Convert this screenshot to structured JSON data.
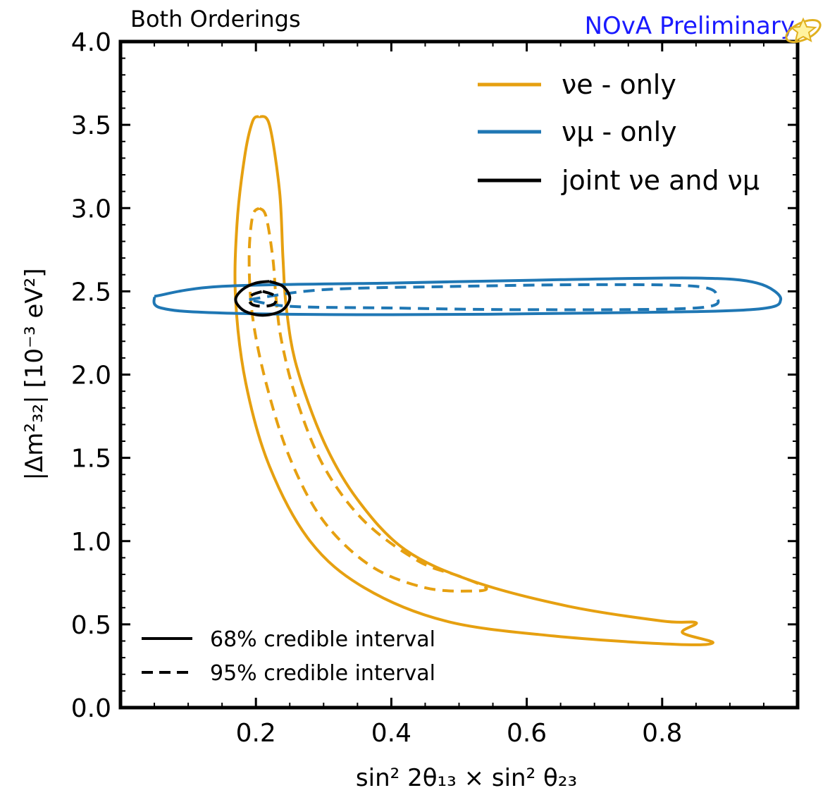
{
  "chart_data": {
    "type": "contour",
    "title": "Both Orderings",
    "watermark": "NOvA Preliminary",
    "xlabel": "sin² 2θ₁₃ × sin² θ₂₃",
    "ylabel": "|Δm²₃₂| [10⁻³ eV²]",
    "xlim": [
      0.0,
      1.0
    ],
    "ylim": [
      0.0,
      4.0
    ],
    "x_ticks": [
      0.2,
      0.4,
      0.6,
      0.8
    ],
    "x_tick_labels": [
      "0.2",
      "0.4",
      "0.6",
      "0.8"
    ],
    "y_ticks": [
      0.0,
      0.5,
      1.0,
      1.5,
      2.0,
      2.5,
      3.0,
      3.5,
      4.0
    ],
    "y_tick_labels": [
      "0.0",
      "0.5",
      "1.0",
      "1.5",
      "2.0",
      "2.5",
      "3.0",
      "3.5",
      "4.0"
    ],
    "legend_series": [
      {
        "label": "νe - only",
        "color": "#e6a010"
      },
      {
        "label": "νμ - only",
        "color": "#1f77b4"
      },
      {
        "label": "joint νe and νμ",
        "color": "#000000"
      }
    ],
    "legend_styles": [
      {
        "label": "68% credible interval",
        "dash": "solid"
      },
      {
        "label": "95% credible interval",
        "dash": "dashed"
      }
    ],
    "series": [
      {
        "id": "nue-68",
        "color": "#e6a010",
        "dash": "solid",
        "points": [
          [
            0.205,
            3.55
          ],
          [
            0.22,
            3.5
          ],
          [
            0.235,
            3.1
          ],
          [
            0.24,
            2.7
          ],
          [
            0.245,
            2.4
          ],
          [
            0.26,
            2.05
          ],
          [
            0.3,
            1.6
          ],
          [
            0.35,
            1.25
          ],
          [
            0.42,
            0.95
          ],
          [
            0.52,
            0.76
          ],
          [
            0.66,
            0.61
          ],
          [
            0.8,
            0.52
          ],
          [
            0.85,
            0.51
          ],
          [
            0.83,
            0.45
          ],
          [
            0.875,
            0.39
          ],
          [
            0.82,
            0.38
          ],
          [
            0.64,
            0.43
          ],
          [
            0.48,
            0.52
          ],
          [
            0.36,
            0.72
          ],
          [
            0.28,
            1.0
          ],
          [
            0.22,
            1.45
          ],
          [
            0.185,
            1.95
          ],
          [
            0.17,
            2.45
          ],
          [
            0.172,
            2.9
          ],
          [
            0.183,
            3.3
          ],
          [
            0.195,
            3.52
          ],
          [
            0.205,
            3.55
          ]
        ]
      },
      {
        "id": "nue-95",
        "color": "#e6a010",
        "dash": "dashed",
        "points": [
          [
            0.205,
            3.0
          ],
          [
            0.215,
            2.95
          ],
          [
            0.225,
            2.7
          ],
          [
            0.23,
            2.45
          ],
          [
            0.238,
            2.2
          ],
          [
            0.26,
            1.85
          ],
          [
            0.3,
            1.45
          ],
          [
            0.36,
            1.12
          ],
          [
            0.44,
            0.88
          ],
          [
            0.5,
            0.79
          ],
          [
            0.54,
            0.72
          ],
          [
            0.52,
            0.7
          ],
          [
            0.45,
            0.72
          ],
          [
            0.37,
            0.85
          ],
          [
            0.3,
            1.12
          ],
          [
            0.25,
            1.5
          ],
          [
            0.215,
            1.95
          ],
          [
            0.195,
            2.35
          ],
          [
            0.19,
            2.7
          ],
          [
            0.195,
            2.95
          ],
          [
            0.205,
            3.0
          ]
        ]
      },
      {
        "id": "numu-68",
        "color": "#1f77b4",
        "dash": "solid",
        "points": [
          [
            0.05,
            2.47
          ],
          [
            0.15,
            2.53
          ],
          [
            0.4,
            2.55
          ],
          [
            0.65,
            2.57
          ],
          [
            0.85,
            2.58
          ],
          [
            0.94,
            2.55
          ],
          [
            0.975,
            2.45
          ],
          [
            0.93,
            2.39
          ],
          [
            0.7,
            2.37
          ],
          [
            0.4,
            2.36
          ],
          [
            0.15,
            2.37
          ],
          [
            0.06,
            2.4
          ],
          [
            0.05,
            2.47
          ]
        ]
      },
      {
        "id": "numu-95",
        "color": "#1f77b4",
        "dash": "dashed",
        "points": [
          [
            0.19,
            2.45
          ],
          [
            0.3,
            2.51
          ],
          [
            0.5,
            2.53
          ],
          [
            0.7,
            2.54
          ],
          [
            0.85,
            2.53
          ],
          [
            0.88,
            2.47
          ],
          [
            0.85,
            2.4
          ],
          [
            0.6,
            2.39
          ],
          [
            0.4,
            2.4
          ],
          [
            0.25,
            2.41
          ],
          [
            0.19,
            2.45
          ]
        ]
      },
      {
        "id": "joint-68",
        "color": "#000000",
        "dash": "solid",
        "points": [
          [
            0.22,
            2.56
          ],
          [
            0.24,
            2.53
          ],
          [
            0.25,
            2.46
          ],
          [
            0.24,
            2.39
          ],
          [
            0.22,
            2.36
          ],
          [
            0.2,
            2.36
          ],
          [
            0.18,
            2.39
          ],
          [
            0.17,
            2.45
          ],
          [
            0.18,
            2.51
          ],
          [
            0.2,
            2.55
          ],
          [
            0.22,
            2.56
          ]
        ]
      },
      {
        "id": "joint-95",
        "color": "#000000",
        "dash": "dashed",
        "points": [
          [
            0.21,
            2.5
          ],
          [
            0.225,
            2.48
          ],
          [
            0.23,
            2.45
          ],
          [
            0.225,
            2.42
          ],
          [
            0.21,
            2.41
          ],
          [
            0.195,
            2.42
          ],
          [
            0.19,
            2.45
          ],
          [
            0.195,
            2.48
          ],
          [
            0.21,
            2.5
          ]
        ]
      }
    ]
  }
}
